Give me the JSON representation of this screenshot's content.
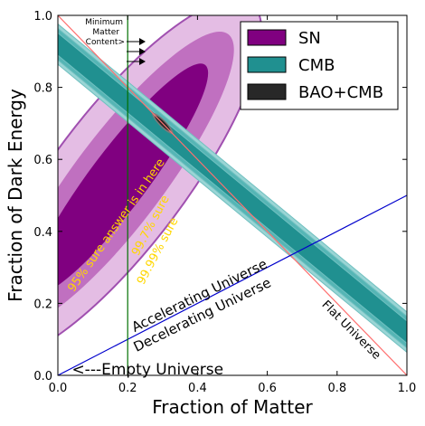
{
  "chart_data": {
    "type": "contour",
    "xlabel": "Fraction of Matter",
    "ylabel": "Fraction of Dark Energy",
    "xlim": [
      0.0,
      1.0
    ],
    "ylim": [
      0.0,
      1.0
    ],
    "xticks": [
      "0.0",
      "0.2",
      "0.4",
      "0.6",
      "0.8",
      "1.0"
    ],
    "yticks": [
      "0.0",
      "0.2",
      "0.4",
      "0.6",
      "0.8",
      "1.0"
    ],
    "legend": {
      "placement": "top-right",
      "entries": [
        {
          "label": "SN",
          "color": "#800080"
        },
        {
          "label": "CMB",
          "color": "#209090"
        },
        {
          "label": "BAO+CMB",
          "color": "#282828"
        }
      ]
    },
    "colors": {
      "sn_68": "#800080",
      "sn_95": "#c070c0",
      "sn_997": "#e4bde4",
      "cmb_68": "#209090",
      "cmb_95": "#55b5b5",
      "cmb_997": "#9ad5d5",
      "flat_line": "#ff7070",
      "accel_line": "#0000cc",
      "min_matter_line": "#007000",
      "sn_label_text": "#ffd700"
    },
    "flat_universe_line": {
      "x": [
        0.0,
        1.0
      ],
      "y": [
        1.0,
        0.0
      ]
    },
    "acceleration_line": {
      "x": [
        0.0,
        1.0
      ],
      "y": [
        0.0,
        0.5
      ]
    },
    "minimum_matter_x": 0.2,
    "best_fit": {
      "x": 0.3,
      "y": 0.7
    },
    "sn_contour_levels": [
      "95% sure answer is in here",
      "99.7% sure",
      "99.99% sure"
    ],
    "annotations": {
      "min_matter": [
        "Minimum",
        "Matter",
        "Content>"
      ],
      "accelerating": "Accelerating Universe",
      "decelerating": "Decelerating Universe",
      "flat": "Flat Universe",
      "empty": "<---Empty Universe"
    }
  }
}
